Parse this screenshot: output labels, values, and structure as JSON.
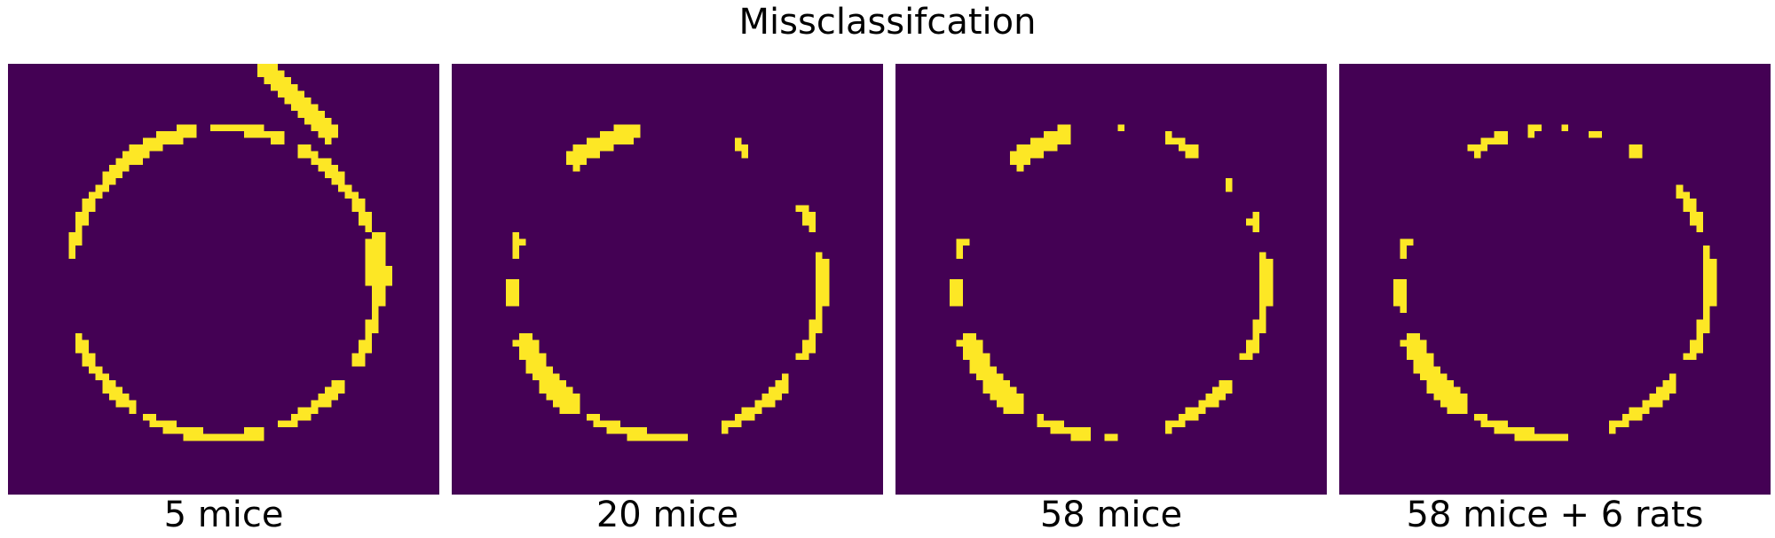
{
  "title": "Missclassifcation",
  "chart_data": [
    {
      "type": "heatmap",
      "label": "5 mice",
      "grid": 64,
      "colors": {
        "background": "#440154",
        "error": "#fde725"
      },
      "arcs": [
        {
          "a0": 100,
          "a1": 135,
          "t": 1.6
        },
        {
          "a0": 135,
          "a1": 170,
          "t": 0.9
        },
        {
          "a0": 200,
          "a1": 235,
          "t": 0.9
        },
        {
          "a0": 240,
          "a1": 285,
          "t": 0.9
        },
        {
          "a0": 292,
          "a1": 320,
          "t": 0.9
        },
        {
          "a0": 328,
          "a1": 358,
          "t": 0.9
        },
        {
          "a0": 0,
          "a1": 18,
          "t": 2.5
        },
        {
          "a0": 20,
          "a1": 62,
          "t": 0.9
        },
        {
          "a0": 66,
          "a1": 96,
          "t": 0.9
        }
      ],
      "blobs": [
        {
          "x1": 38.5,
          "y1": 1.3,
          "x2": 47.8,
          "y2": 10.2,
          "w": 2.8
        }
      ]
    },
    {
      "type": "heatmap",
      "label": "20 mice",
      "grid": 64,
      "colors": {
        "background": "#440154",
        "error": "#fde725"
      },
      "arcs": [
        {
          "a0": 100,
          "a1": 130,
          "t": 2.0
        },
        {
          "a0": 162,
          "a1": 170,
          "t": 0.9
        },
        {
          "a0": 180,
          "a1": 190,
          "t": 0.9
        },
        {
          "a0": 200,
          "a1": 235,
          "t": 2.5
        },
        {
          "a0": 240,
          "a1": 278,
          "t": 0.9
        },
        {
          "a0": 290,
          "a1": 322,
          "t": 0.9
        },
        {
          "a0": 330,
          "a1": 358,
          "t": 0.9
        },
        {
          "a0": 0,
          "a1": 12,
          "t": 0.9
        },
        {
          "a0": 20,
          "a1": 30,
          "t": 0.9
        },
        {
          "a0": 58,
          "a1": 64,
          "t": 0.9
        }
      ],
      "blobs": []
    },
    {
      "type": "heatmap",
      "label": "58 mice",
      "grid": 64,
      "colors": {
        "background": "#440154",
        "error": "#fde725"
      },
      "arcs": [
        {
          "a0": 105,
          "a1": 130,
          "t": 2.0
        },
        {
          "a0": 163,
          "a1": 170,
          "t": 0.9
        },
        {
          "a0": 180,
          "a1": 190,
          "t": 0.9
        },
        {
          "a0": 200,
          "a1": 235,
          "t": 2.5
        },
        {
          "a0": 242,
          "a1": 262,
          "t": 0.9
        },
        {
          "a0": 268,
          "a1": 272,
          "t": 0.9
        },
        {
          "a0": 290,
          "a1": 320,
          "t": 0.9
        },
        {
          "a0": 330,
          "a1": 358,
          "t": 0.9
        },
        {
          "a0": 0,
          "a1": 12,
          "t": 0.9
        },
        {
          "a0": 20,
          "a1": 26,
          "t": 0.9
        },
        {
          "a0": 38,
          "a1": 42,
          "t": 0.9
        },
        {
          "a0": 55,
          "a1": 70,
          "t": 0.9
        },
        {
          "a0": 85,
          "a1": 88,
          "t": 0.9
        }
      ],
      "blobs": []
    },
    {
      "type": "heatmap",
      "label": "58 mice + 6 rats",
      "grid": 64,
      "colors": {
        "background": "#440154",
        "error": "#fde725"
      },
      "arcs": [
        {
          "a0": 107,
          "a1": 123,
          "t": 0.9
        },
        {
          "a0": 163,
          "a1": 170,
          "t": 0.9
        },
        {
          "a0": 178,
          "a1": 192,
          "t": 0.9
        },
        {
          "a0": 200,
          "a1": 235,
          "t": 2.5
        },
        {
          "a0": 240,
          "a1": 276,
          "t": 0.9
        },
        {
          "a0": 290,
          "a1": 322,
          "t": 0.9
        },
        {
          "a0": 330,
          "a1": 358,
          "t": 0.9
        },
        {
          "a0": 0,
          "a1": 14,
          "t": 0.9
        },
        {
          "a0": 20,
          "a1": 38,
          "t": 0.9
        },
        {
          "a0": 55,
          "a1": 62,
          "t": 0.9
        },
        {
          "a0": 72,
          "a1": 76,
          "t": 0.9
        },
        {
          "a0": 84,
          "a1": 88,
          "t": 0.9
        },
        {
          "a0": 96,
          "a1": 100,
          "t": 0.9
        }
      ],
      "blobs": []
    }
  ]
}
